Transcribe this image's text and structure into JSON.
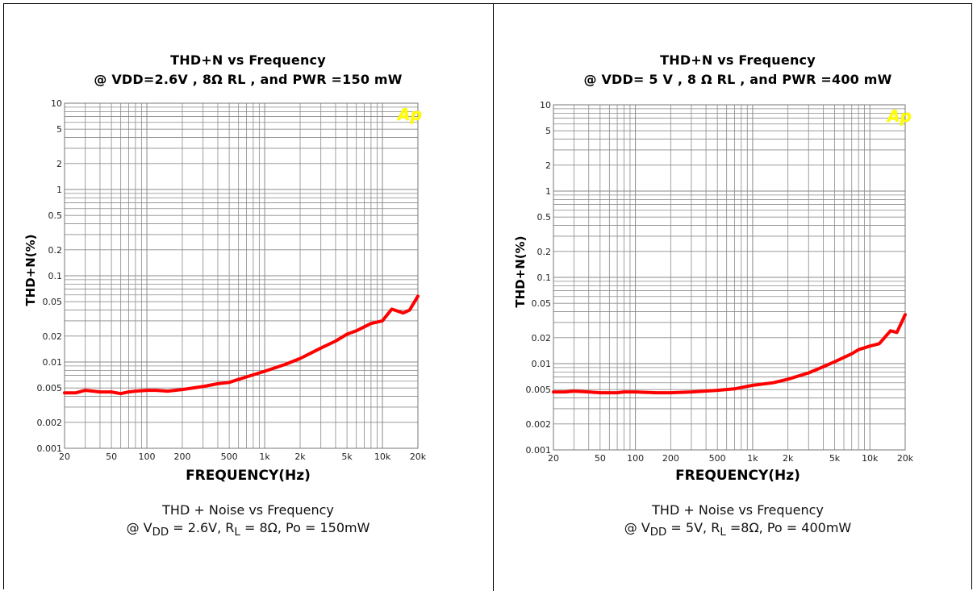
{
  "chart_data": [
    {
      "type": "line",
      "title": "THD+N vs Frequency",
      "subtitle": "@ VDD=2.6V , 8Ω RL , and PWR =150 mW",
      "xlabel": "FREQUENCY(Hz)",
      "ylabel": "THD+N(%)",
      "xscale": "log",
      "yscale": "log",
      "xlim": [
        20,
        20000
      ],
      "ylim": [
        0.001,
        10
      ],
      "grid": true,
      "xticks": [
        "20",
        "50",
        "100",
        "200",
        "500",
        "1k",
        "2k",
        "5k",
        "10k",
        "20k"
      ],
      "yticks": [
        "10",
        "5",
        "2",
        "1",
        "0.5",
        "0.2",
        "0.1",
        "0.05",
        "0.02",
        "0.01",
        "0.005",
        "0.002",
        "0.001"
      ],
      "line_color": "#ff0000",
      "logo": "Ap",
      "caption_line1": "THD + Noise vs Frequency",
      "caption_line2": "@ V<sub>DD</sub> = 2.6V, R<sub>L</sub> = 8Ω, Po = 150mW",
      "series": [
        {
          "x": [
            20,
            25,
            30,
            35,
            40,
            50,
            60,
            70,
            80,
            100,
            120,
            150,
            200,
            300,
            400,
            500,
            600,
            800,
            1000,
            1500,
            2000,
            3000,
            4000,
            5000,
            6000,
            8000,
            10000,
            12000,
            15000,
            17000,
            20000
          ],
          "y": [
            0.0044,
            0.0044,
            0.0047,
            0.0046,
            0.0045,
            0.0045,
            0.0043,
            0.0045,
            0.0046,
            0.0047,
            0.0047,
            0.0046,
            0.0048,
            0.0052,
            0.0056,
            0.0058,
            0.0063,
            0.0071,
            0.0078,
            0.0094,
            0.011,
            0.0145,
            0.0175,
            0.021,
            0.023,
            0.028,
            0.03,
            0.041,
            0.037,
            0.04,
            0.058
          ]
        }
      ]
    },
    {
      "type": "line",
      "title": "THD+N vs Frequency",
      "subtitle": "@ VDD= 5 V , 8 Ω RL , and PWR =400 mW",
      "xlabel": "FREQUENCY(Hz)",
      "ylabel": "THD+N(%)",
      "xscale": "log",
      "yscale": "log",
      "xlim": [
        20,
        20000
      ],
      "ylim": [
        0.001,
        10
      ],
      "grid": true,
      "xticks": [
        "20",
        "50",
        "100",
        "200",
        "500",
        "1k",
        "2k",
        "5k",
        "10k",
        "20k"
      ],
      "yticks": [
        "10",
        "5",
        "2",
        "1",
        "0.5",
        "0.2",
        "0.1",
        "0.05",
        "0.02",
        "0.01",
        "0.005",
        "0.002",
        "0.001"
      ],
      "line_color": "#ff0000",
      "logo": "Ap",
      "caption_line1": "THD + Noise vs Frequency",
      "caption_line2": "@ V<sub>DD</sub> = 5V, R<sub>L</sub> =8Ω, Po = 400mW",
      "series": [
        {
          "x": [
            20,
            25,
            30,
            40,
            50,
            60,
            70,
            80,
            100,
            150,
            200,
            300,
            500,
            700,
            1000,
            1500,
            2000,
            3000,
            4000,
            5000,
            7000,
            8000,
            10000,
            12000,
            15000,
            17000,
            20000
          ],
          "y": [
            0.0047,
            0.0047,
            0.0048,
            0.0047,
            0.0046,
            0.0046,
            0.0046,
            0.0047,
            0.0047,
            0.0046,
            0.0046,
            0.0047,
            0.0049,
            0.0051,
            0.0056,
            0.006,
            0.0066,
            0.0078,
            0.0092,
            0.0105,
            0.013,
            0.0145,
            0.016,
            0.017,
            0.024,
            0.023,
            0.037
          ]
        }
      ]
    }
  ]
}
